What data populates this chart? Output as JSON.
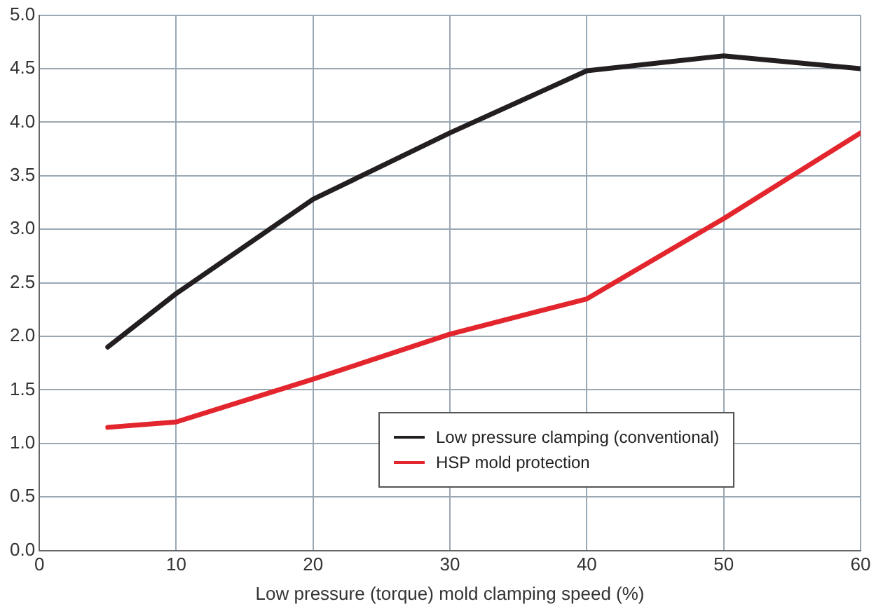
{
  "chart_data": {
    "type": "line",
    "xlabel": "Low pressure (torque) mold clamping speed (%)",
    "series": [
      {
        "name": "Low pressure clamping (conventional)",
        "color": "#231f20",
        "x": [
          5,
          10,
          20,
          30,
          40,
          50,
          60
        ],
        "values": [
          1.9,
          2.4,
          3.28,
          3.9,
          4.48,
          4.62,
          4.5
        ]
      },
      {
        "name": "HSP mold protection",
        "color": "#e3262d",
        "x": [
          5,
          10,
          20,
          30,
          40,
          50,
          60
        ],
        "values": [
          1.15,
          1.2,
          1.6,
          2.02,
          2.35,
          3.1,
          3.9
        ]
      }
    ],
    "xlim": [
      0,
      60
    ],
    "xticks": [
      0,
      10,
      20,
      30,
      40,
      50,
      60
    ],
    "ylim": [
      0,
      5
    ],
    "yticks": [
      {
        "value": 0,
        "label": "0.0"
      },
      {
        "value": 0.5,
        "label": "0.5"
      },
      {
        "value": 1,
        "label": "1.0"
      },
      {
        "value": 1.5,
        "label": "1.5"
      },
      {
        "value": 2,
        "label": "2.0"
      },
      {
        "value": 2.5,
        "label": "2.5"
      },
      {
        "value": 3,
        "label": "3.0"
      },
      {
        "value": 3.5,
        "label": "3.5"
      },
      {
        "value": 4,
        "label": "4.0"
      },
      {
        "value": 4.5,
        "label": "4.5"
      },
      {
        "value": 5,
        "label": "5.0"
      }
    ],
    "grid": true,
    "legend": "bottom right",
    "marker": "none",
    "line_style": "solid"
  }
}
